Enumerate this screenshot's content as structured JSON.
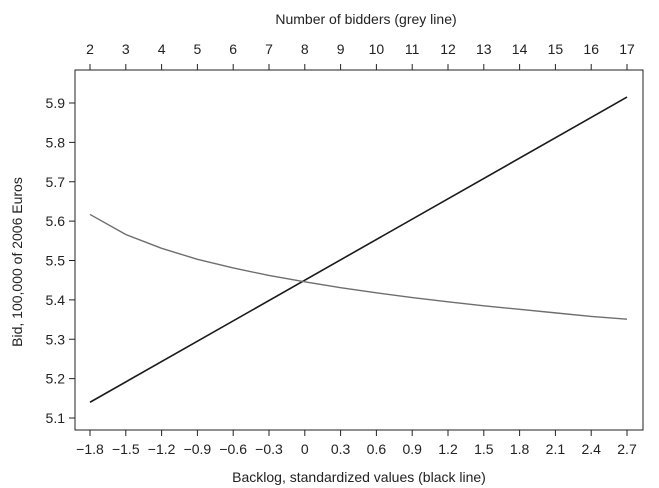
{
  "chart_data": {
    "type": "line",
    "title": "",
    "xlabel": "Backlog, standardized values (black line)",
    "x2label": "Number of bidders (grey line)",
    "ylabel": "Bid, 100,000 of 2006 Euros",
    "xlim": [
      -1.8,
      2.7
    ],
    "x2lim": [
      2,
      17
    ],
    "ylim": [
      5.1,
      5.9
    ],
    "x_ticks": [
      "−1.8",
      "−1.5",
      "−1.2",
      "−0.9",
      "−0.6",
      "−0.3",
      "0",
      "0.3",
      "0.6",
      "0.9",
      "1.2",
      "1.5",
      "1.8",
      "2.1",
      "2.4",
      "2.7"
    ],
    "x2_ticks": [
      "2",
      "3",
      "4",
      "5",
      "6",
      "7",
      "8",
      "9",
      "10",
      "11",
      "12",
      "13",
      "14",
      "15",
      "16",
      "17"
    ],
    "y_ticks": [
      "5.1",
      "5.2",
      "5.3",
      "5.4",
      "5.5",
      "5.6",
      "5.7",
      "5.8",
      "5.9"
    ],
    "grid": false,
    "series": [
      {
        "axis": "bottom",
        "color": "#1a1a1a",
        "x": [
          -1.8,
          2.7
        ],
        "y": [
          5.14,
          5.915
        ]
      },
      {
        "axis": "top",
        "color": "#6e6e6e",
        "x": [
          2,
          3,
          4,
          5,
          6,
          7,
          8,
          9,
          10,
          11,
          12,
          13,
          14,
          15,
          16,
          17
        ],
        "y": [
          5.617,
          5.566,
          5.531,
          5.503,
          5.481,
          5.462,
          5.446,
          5.431,
          5.418,
          5.406,
          5.395,
          5.385,
          5.376,
          5.367,
          5.358,
          5.351
        ]
      }
    ]
  }
}
